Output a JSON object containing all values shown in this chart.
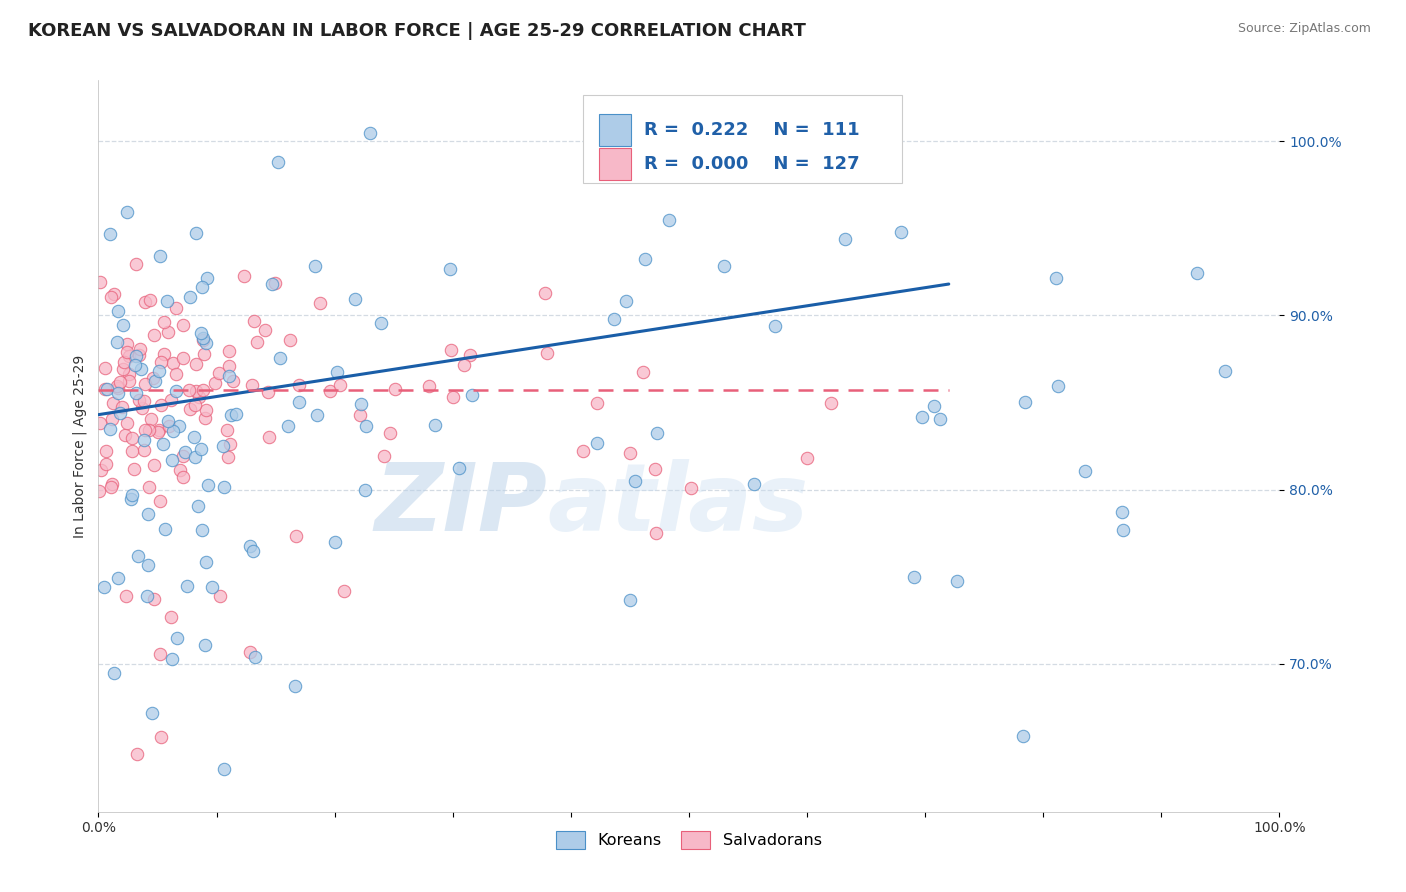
{
  "title": "KOREAN VS SALVADORAN IN LABOR FORCE | AGE 25-29 CORRELATION CHART",
  "source_text": "Source: ZipAtlas.com",
  "ylabel": "In Labor Force | Age 25-29",
  "xlim": [
    0.0,
    1.0
  ],
  "ylim": [
    0.615,
    1.035
  ],
  "yticks": [
    0.7,
    0.8,
    0.9,
    1.0
  ],
  "ytick_labels": [
    "70.0%",
    "80.0%",
    "90.0%",
    "100.0%"
  ],
  "xtick_labels": [
    "0.0%",
    "",
    "",
    "",
    "",
    "",
    "",
    "",
    "",
    "",
    "100.0%"
  ],
  "korean_fill": "#aecce8",
  "salvadoran_fill": "#f7b8c8",
  "korean_edge": "#4a90c8",
  "salvadoran_edge": "#e8607a",
  "korean_line_color": "#1a5ea8",
  "salvadoran_line_color": "#e8607a",
  "legend_text_color": "#2060a8",
  "watermark_zip_color": "#b8d0e8",
  "watermark_atlas_color": "#c8ddf0",
  "background_color": "#ffffff",
  "grid_color": "#d0d8e0",
  "title_fontsize": 13,
  "axis_label_fontsize": 10,
  "tick_fontsize": 10,
  "legend_fontsize": 13,
  "korean_R": 0.222,
  "korean_N": 111,
  "salvadoran_R": 0.0,
  "salvadoran_N": 127,
  "korean_trend_x": [
    0.0,
    0.72
  ],
  "korean_trend_y": [
    0.843,
    0.918
  ],
  "salvadoran_trend_x": [
    0.0,
    0.72
  ],
  "salvadoran_trend_y": [
    0.857,
    0.857
  ]
}
